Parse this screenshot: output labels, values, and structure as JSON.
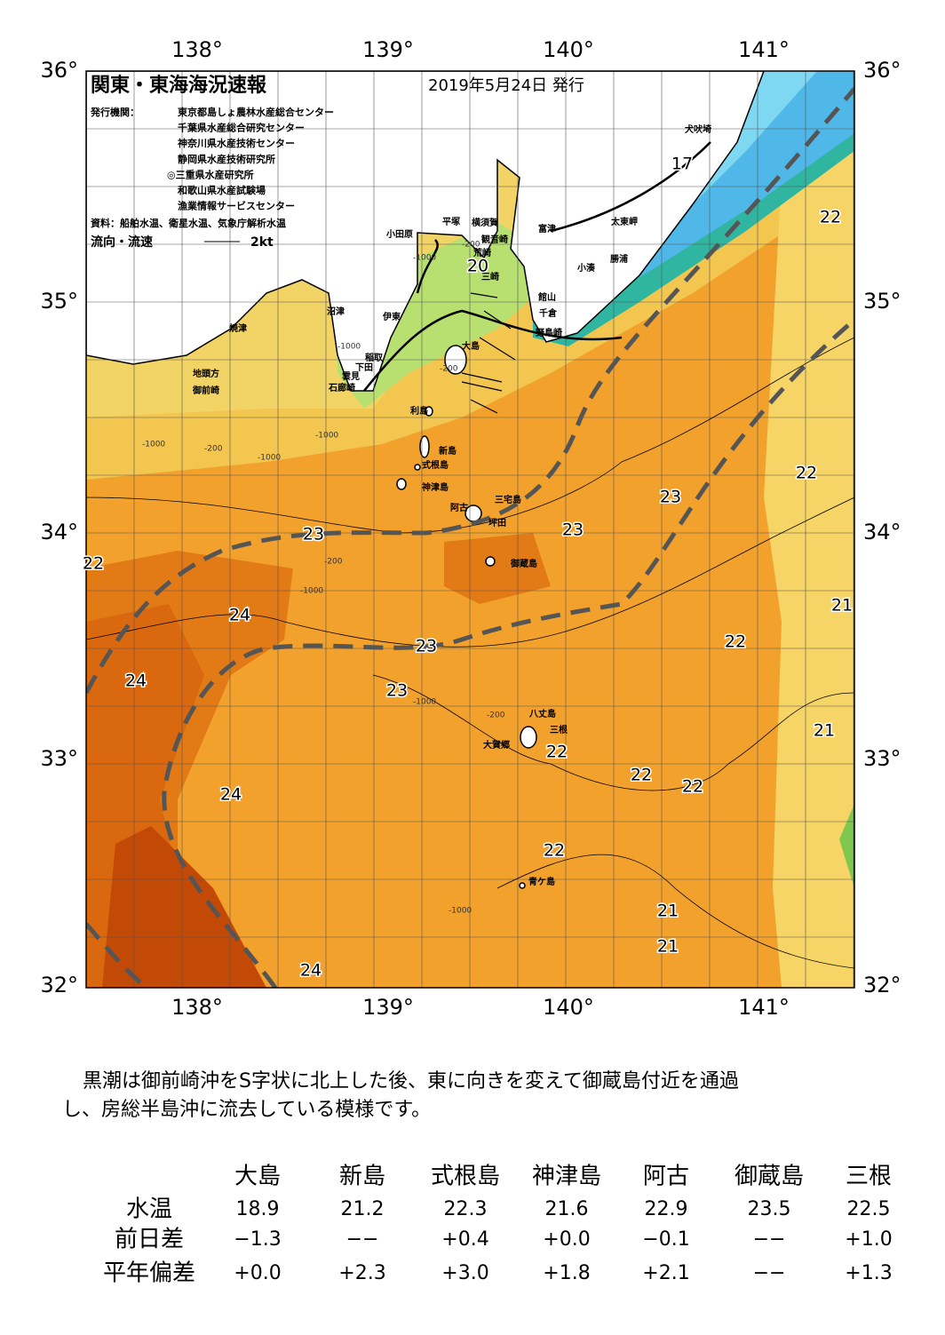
{
  "header": {
    "title": "関東・東海海況速報",
    "date": "2019年5月24日 発行"
  },
  "issuers": {
    "label": "発行機関：",
    "names": [
      "東京都島しょ農林水産総合センター",
      "千葉県水産総合研究センター",
      "神奈川県水産技術センター",
      "静岡県水産技術研究所",
      "◎三重県水産研究所",
      "和歌山県水産試験場",
      "漁業情報サービスセンター"
    ]
  },
  "source": "資料：船舶水温、衛星水温、気象庁解析水温",
  "legend": {
    "label": "流向・流速",
    "scale": "2kt"
  },
  "axes": {
    "lon": [
      "138°",
      "139°",
      "140°",
      "141°"
    ],
    "lat": [
      "36°",
      "35°",
      "34°",
      "33°",
      "32°"
    ]
  },
  "places": [
    "犬吠埼",
    "富津",
    "太東岬",
    "小田原",
    "平塚",
    "横須賀",
    "観音崎",
    "荒崎",
    "勝浦",
    "小湊",
    "三崎",
    "館山",
    "千倉",
    "野島崎",
    "沼津",
    "伊東",
    "焼津",
    "大島",
    "稲取",
    "下田",
    "雲見",
    "石廊崎",
    "地頭方",
    "御前崎",
    "利島",
    "新島",
    "式根島",
    "神津島",
    "三宅島",
    "阿古",
    "坪田",
    "御蔵島",
    "八丈島",
    "三根",
    "大賀郷",
    "青ケ島"
  ],
  "contour_labels": [
    "17",
    "20",
    "22",
    "22",
    "23",
    "23",
    "23",
    "22",
    "24",
    "21",
    "22",
    "23",
    "24",
    "23",
    "21",
    "22",
    "22",
    "22",
    "24",
    "22",
    "21",
    "21",
    "24"
  ],
  "depth_labels": [
    "-1000",
    "-200",
    "-1000",
    "-200",
    "-1000",
    "-200",
    "-1000",
    "-1000",
    "-200",
    "-1000",
    "-1000",
    "-200",
    "-1000"
  ],
  "description": [
    "黒潮は御前崎沖をS字状に北上した後、東に向きを変えて御蔵島付近を通過",
    "し、房総半島沖に流去している模様です。"
  ],
  "table": {
    "columns": [
      "大島",
      "新島",
      "式根島",
      "神津島",
      "阿古",
      "御蔵島",
      "三根"
    ],
    "rows": [
      {
        "label": "水温",
        "values": [
          "18.9",
          "21.2",
          "22.3",
          "21.6",
          "22.9",
          "23.5",
          "22.5"
        ]
      },
      {
        "label": "前日差",
        "values": [
          "−1.3",
          "−−",
          "+0.4",
          "+0.0",
          "−0.1",
          "−−",
          "+1.0"
        ]
      },
      {
        "label": "平年偏差",
        "values": [
          "+0.0",
          "+2.3",
          "+3.0",
          "+1.8",
          "+2.1",
          "−−",
          "+1.3"
        ]
      }
    ]
  }
}
